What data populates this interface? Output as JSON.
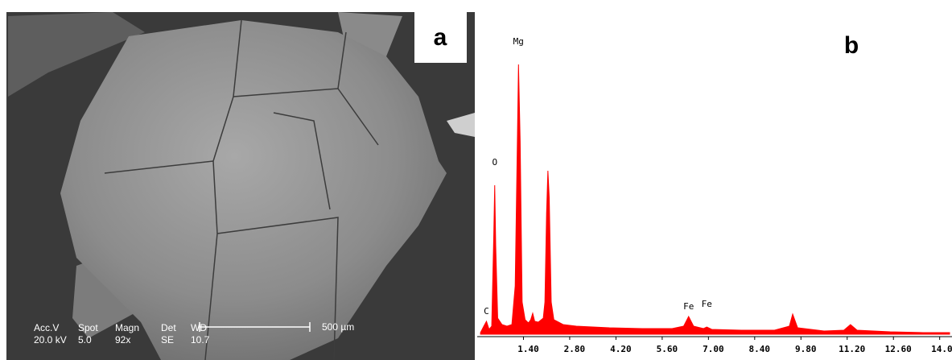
{
  "panel_a": {
    "label": "a",
    "info_header": [
      "Acc.V",
      "Spot",
      "Magn",
      "Det",
      "WD"
    ],
    "info_values": [
      "20.0 kV",
      "5.0",
      "92x",
      "SE",
      "10.7"
    ],
    "scale_bar": "500 µm"
  },
  "chart_data": {
    "type": "spectrum",
    "label": "b",
    "color": "#ff0000",
    "x": [
      0.1,
      0.2,
      0.28,
      0.36,
      0.44,
      0.5,
      0.53,
      0.56,
      0.62,
      0.75,
      0.9,
      1.05,
      1.15,
      1.22,
      1.25,
      1.3,
      1.36,
      1.45,
      1.55,
      1.62,
      1.68,
      1.74,
      1.85,
      2.0,
      2.05,
      2.1,
      2.14,
      2.18,
      2.24,
      2.32,
      2.6,
      3.0,
      4.0,
      5.0,
      5.9,
      6.25,
      6.4,
      6.55,
      6.85,
      6.95,
      7.1,
      8.0,
      9.0,
      9.45,
      9.55,
      9.7,
      10.5,
      11.1,
      11.3,
      11.5,
      12.5,
      13.5,
      14.3
    ],
    "values": [
      2,
      10,
      16,
      6,
      10,
      120,
      185,
      110,
      20,
      12,
      10,
      12,
      60,
      250,
      335,
      240,
      40,
      18,
      14,
      18,
      26,
      16,
      15,
      20,
      40,
      150,
      203,
      170,
      40,
      18,
      12,
      10,
      8,
      7,
      7,
      10,
      22,
      10,
      7,
      9,
      6,
      5,
      5,
      10,
      25,
      8,
      4,
      5,
      12,
      5,
      3,
      2,
      2
    ],
    "xlim": [
      0,
      14.3
    ],
    "ylim": [
      0,
      350
    ],
    "xticks": [
      {
        "value": 1.4,
        "label": "1.40"
      },
      {
        "value": 2.8,
        "label": "2.80"
      },
      {
        "value": 4.2,
        "label": "4.20"
      },
      {
        "value": 5.6,
        "label": "5.60"
      },
      {
        "value": 7.0,
        "label": "7.00"
      },
      {
        "value": 8.4,
        "label": "8.40"
      },
      {
        "value": 9.8,
        "label": "9.80"
      },
      {
        "value": 11.2,
        "label": "11.20"
      },
      {
        "value": 12.6,
        "label": "12.60"
      },
      {
        "value": 14.0,
        "label": "14.00"
      }
    ],
    "annotations": [
      {
        "text": "C",
        "x": 0.28
      },
      {
        "text": "O",
        "x": 0.53
      },
      {
        "text": "Mg",
        "x": 1.25
      },
      {
        "text": "Fe",
        "x": 6.4
      },
      {
        "text": "Fe",
        "x": 6.95
      }
    ]
  }
}
